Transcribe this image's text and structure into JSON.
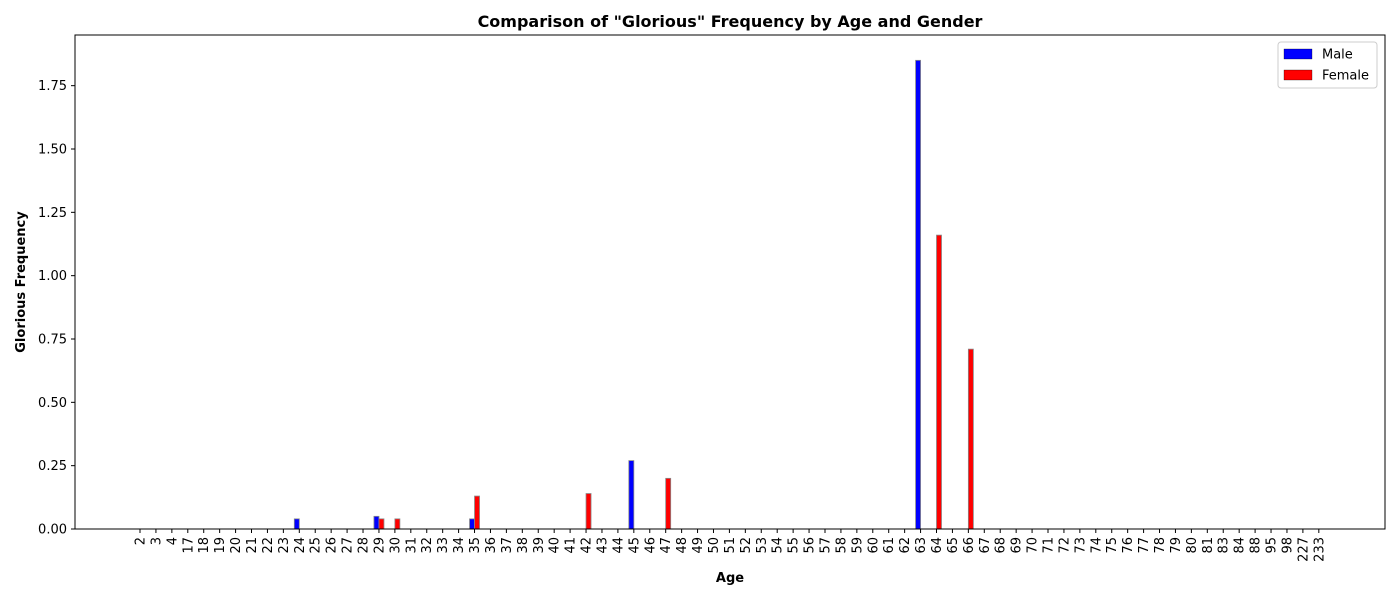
{
  "chart_data": {
    "type": "bar",
    "title": "Comparison of \"Glorious\" Frequency by Age and Gender",
    "xlabel": "Age",
    "ylabel": "Glorious Frequency",
    "ylim": [
      0,
      1.95
    ],
    "yticks": [
      "0.00",
      "0.25",
      "0.50",
      "0.75",
      "1.00",
      "1.25",
      "1.50",
      "1.75"
    ],
    "grid": false,
    "legend_position": "top-right",
    "categories": [
      "2",
      "3",
      "4",
      "17",
      "18",
      "19",
      "20",
      "21",
      "22",
      "23",
      "24",
      "25",
      "26",
      "27",
      "28",
      "29",
      "30",
      "31",
      "32",
      "33",
      "34",
      "35",
      "36",
      "37",
      "38",
      "39",
      "40",
      "41",
      "42",
      "43",
      "44",
      "45",
      "46",
      "47",
      "48",
      "49",
      "50",
      "51",
      "52",
      "53",
      "54",
      "55",
      "56",
      "57",
      "58",
      "59",
      "60",
      "61",
      "62",
      "63",
      "64",
      "65",
      "66",
      "67",
      "68",
      "69",
      "70",
      "71",
      "72",
      "73",
      "74",
      "75",
      "76",
      "77",
      "78",
      "79",
      "80",
      "81",
      "83",
      "84",
      "88",
      "95",
      "98",
      "227",
      "233"
    ],
    "series": [
      {
        "name": "Male",
        "color": "#0000ff",
        "values": [
          0,
          0,
          0,
          0,
          0,
          0,
          0,
          0,
          0,
          0,
          0.04,
          0,
          0,
          0,
          0,
          0.05,
          0,
          0,
          0,
          0,
          0,
          0.04,
          0,
          0,
          0,
          0,
          0,
          0,
          0,
          0,
          0,
          0.27,
          0,
          0,
          0,
          0,
          0,
          0,
          0,
          0,
          0,
          0,
          0,
          0,
          0,
          0,
          0,
          0,
          0,
          1.85,
          0,
          0,
          0,
          0,
          0,
          0,
          0,
          0,
          0,
          0,
          0,
          0,
          0,
          0,
          0,
          0,
          0,
          0,
          0,
          0,
          0,
          0,
          0,
          0,
          0
        ]
      },
      {
        "name": "Female",
        "color": "#ff0000",
        "values": [
          0,
          0,
          0,
          0,
          0,
          0,
          0,
          0,
          0,
          0,
          0,
          0,
          0,
          0,
          0,
          0.04,
          0.04,
          0,
          0,
          0,
          0,
          0.13,
          0,
          0,
          0,
          0,
          0,
          0,
          0.14,
          0,
          0,
          0,
          0,
          0.2,
          0,
          0,
          0,
          0,
          0,
          0,
          0,
          0,
          0,
          0,
          0,
          0,
          0,
          0,
          0,
          0,
          1.16,
          0,
          0.71,
          0,
          0,
          0,
          0,
          0,
          0,
          0,
          0,
          0,
          0,
          0,
          0,
          0,
          0,
          0,
          0,
          0,
          0,
          0,
          0,
          0,
          0
        ]
      }
    ]
  }
}
